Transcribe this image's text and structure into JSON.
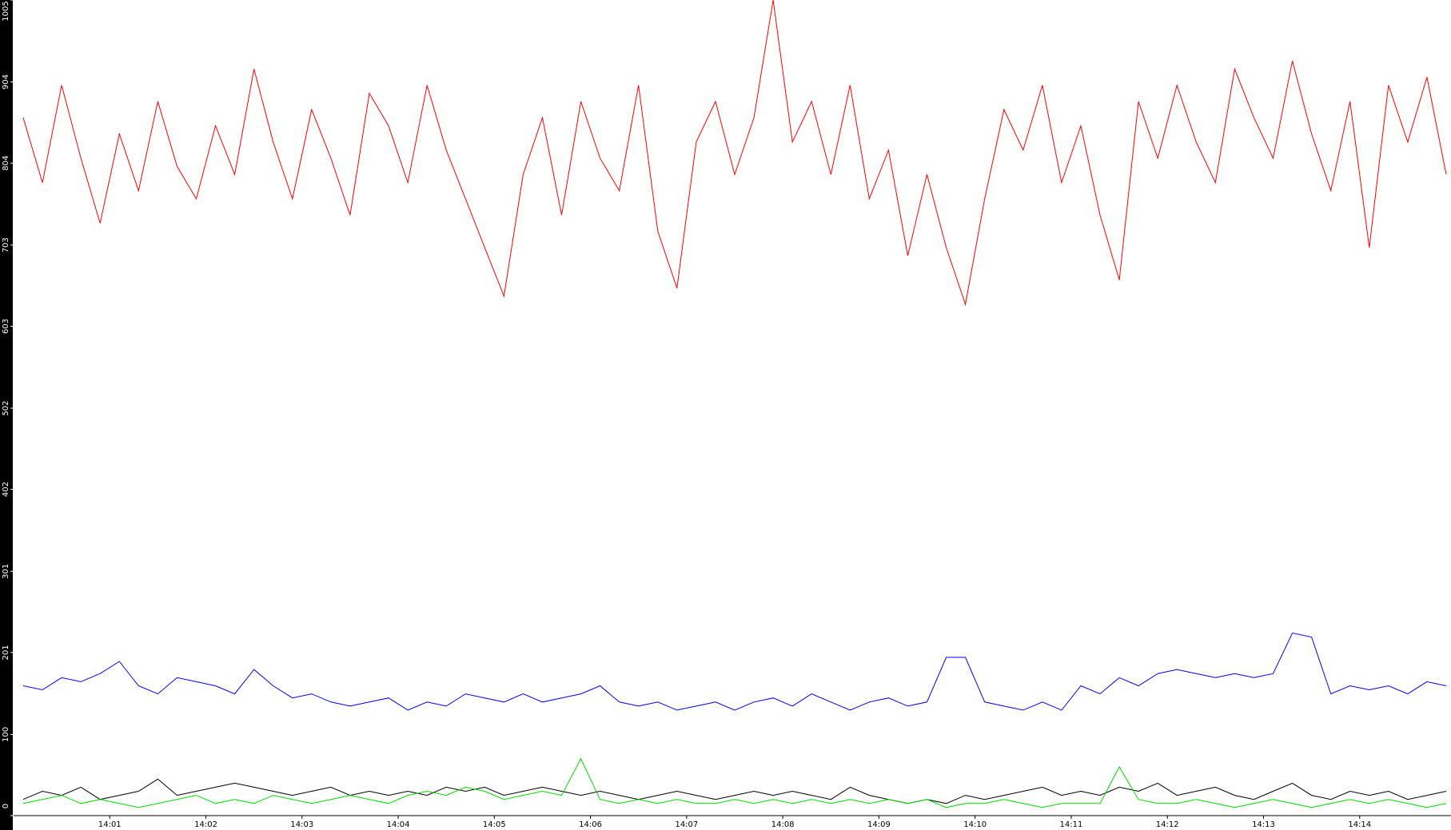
{
  "chart_data": {
    "type": "line",
    "x": [
      0.1,
      0.3,
      0.5,
      0.7,
      0.9,
      1.1,
      1.3,
      1.5,
      1.7,
      1.9,
      2.1,
      2.3,
      2.5,
      2.7,
      2.9,
      3.1,
      3.3,
      3.5,
      3.7,
      3.9,
      4.1,
      4.3,
      4.5,
      4.7,
      4.9,
      5.1,
      5.3,
      5.5,
      5.7,
      5.9,
      6.1,
      6.3,
      6.5,
      6.7,
      6.9,
      7.1,
      7.3,
      7.5,
      7.7,
      7.9,
      8.1,
      8.3,
      8.5,
      8.7,
      8.9,
      9.1,
      9.3,
      9.5,
      9.7,
      9.9,
      10.1,
      10.3,
      10.5,
      10.7,
      10.9,
      11.1,
      11.3,
      11.5,
      11.7,
      11.9,
      12.1,
      12.3,
      12.5,
      12.7,
      12.9,
      13.1,
      13.3,
      13.5,
      13.7,
      13.9,
      14.1,
      14.3,
      14.5,
      14.7,
      14.9
    ],
    "series": [
      {
        "color": "#ff0000",
        "values": [
          860,
          780,
          900,
          810,
          730,
          840,
          770,
          880,
          800,
          760,
          850,
          790,
          920,
          830,
          760,
          870,
          810,
          740,
          890,
          850,
          780,
          900,
          820,
          760,
          700,
          640,
          790,
          860,
          740,
          880,
          810,
          770,
          900,
          720,
          650,
          830,
          880,
          790,
          860,
          1005,
          830,
          880,
          790,
          900,
          760,
          820,
          690,
          790,
          700,
          630,
          760,
          870,
          820,
          900,
          780,
          850,
          740,
          660,
          880,
          810,
          900,
          830,
          780,
          920,
          860,
          810,
          930,
          840,
          770,
          880,
          700,
          900,
          830,
          910,
          790
        ]
      },
      {
        "color": "#0000ff",
        "values": [
          160,
          155,
          170,
          165,
          175,
          190,
          160,
          150,
          170,
          165,
          160,
          150,
          180,
          160,
          145,
          150,
          140,
          135,
          140,
          145,
          130,
          140,
          135,
          150,
          145,
          140,
          150,
          140,
          145,
          150,
          160,
          140,
          135,
          140,
          130,
          135,
          140,
          130,
          140,
          145,
          135,
          150,
          140,
          130,
          140,
          145,
          135,
          140,
          195,
          195,
          140,
          135,
          130,
          140,
          130,
          160,
          150,
          170,
          160,
          175,
          180,
          175,
          170,
          175,
          170,
          175,
          225,
          220,
          150,
          160,
          155,
          160,
          150,
          165,
          160
        ]
      },
      {
        "color": "#000000",
        "values": [
          20,
          30,
          25,
          35,
          20,
          25,
          30,
          45,
          25,
          30,
          35,
          40,
          35,
          30,
          25,
          30,
          35,
          25,
          30,
          25,
          30,
          25,
          35,
          30,
          35,
          25,
          30,
          35,
          30,
          25,
          30,
          25,
          20,
          25,
          30,
          25,
          20,
          25,
          30,
          25,
          30,
          25,
          20,
          35,
          25,
          20,
          15,
          20,
          15,
          25,
          20,
          25,
          30,
          35,
          25,
          30,
          25,
          35,
          30,
          40,
          25,
          30,
          35,
          25,
          20,
          30,
          40,
          25,
          20,
          30,
          25,
          30,
          20,
          25,
          30
        ]
      },
      {
        "color": "#00dd00",
        "values": [
          15,
          20,
          25,
          15,
          20,
          15,
          10,
          15,
          20,
          25,
          15,
          20,
          15,
          25,
          20,
          15,
          20,
          25,
          20,
          15,
          25,
          30,
          25,
          35,
          30,
          20,
          25,
          30,
          25,
          70,
          20,
          15,
          20,
          15,
          20,
          15,
          15,
          20,
          15,
          20,
          15,
          20,
          15,
          20,
          15,
          20,
          15,
          20,
          10,
          15,
          15,
          20,
          15,
          10,
          15,
          15,
          15,
          60,
          20,
          15,
          15,
          20,
          15,
          10,
          15,
          20,
          15,
          10,
          15,
          20,
          15,
          20,
          15,
          10,
          15
        ]
      }
    ],
    "xlim": [
      0,
      14.95
    ],
    "xticks": [
      {
        "value": 1,
        "label": "14:01"
      },
      {
        "value": 2,
        "label": "14:02"
      },
      {
        "value": 3,
        "label": "14:03"
      },
      {
        "value": 4,
        "label": "14:04"
      },
      {
        "value": 5,
        "label": "14:05"
      },
      {
        "value": 6,
        "label": "14:06"
      },
      {
        "value": 7,
        "label": "14:07"
      },
      {
        "value": 8,
        "label": "14:08"
      },
      {
        "value": 9,
        "label": "14:09"
      },
      {
        "value": 10,
        "label": "14:10"
      },
      {
        "value": 11,
        "label": "14:11"
      },
      {
        "value": 12,
        "label": "14:12"
      },
      {
        "value": 13,
        "label": "14:13"
      },
      {
        "value": 14,
        "label": "14:14"
      }
    ],
    "ylim": [
      0,
      1005
    ],
    "yticks": [
      0,
      100,
      201,
      301,
      402,
      502,
      603,
      703,
      804,
      904,
      1005
    ]
  }
}
